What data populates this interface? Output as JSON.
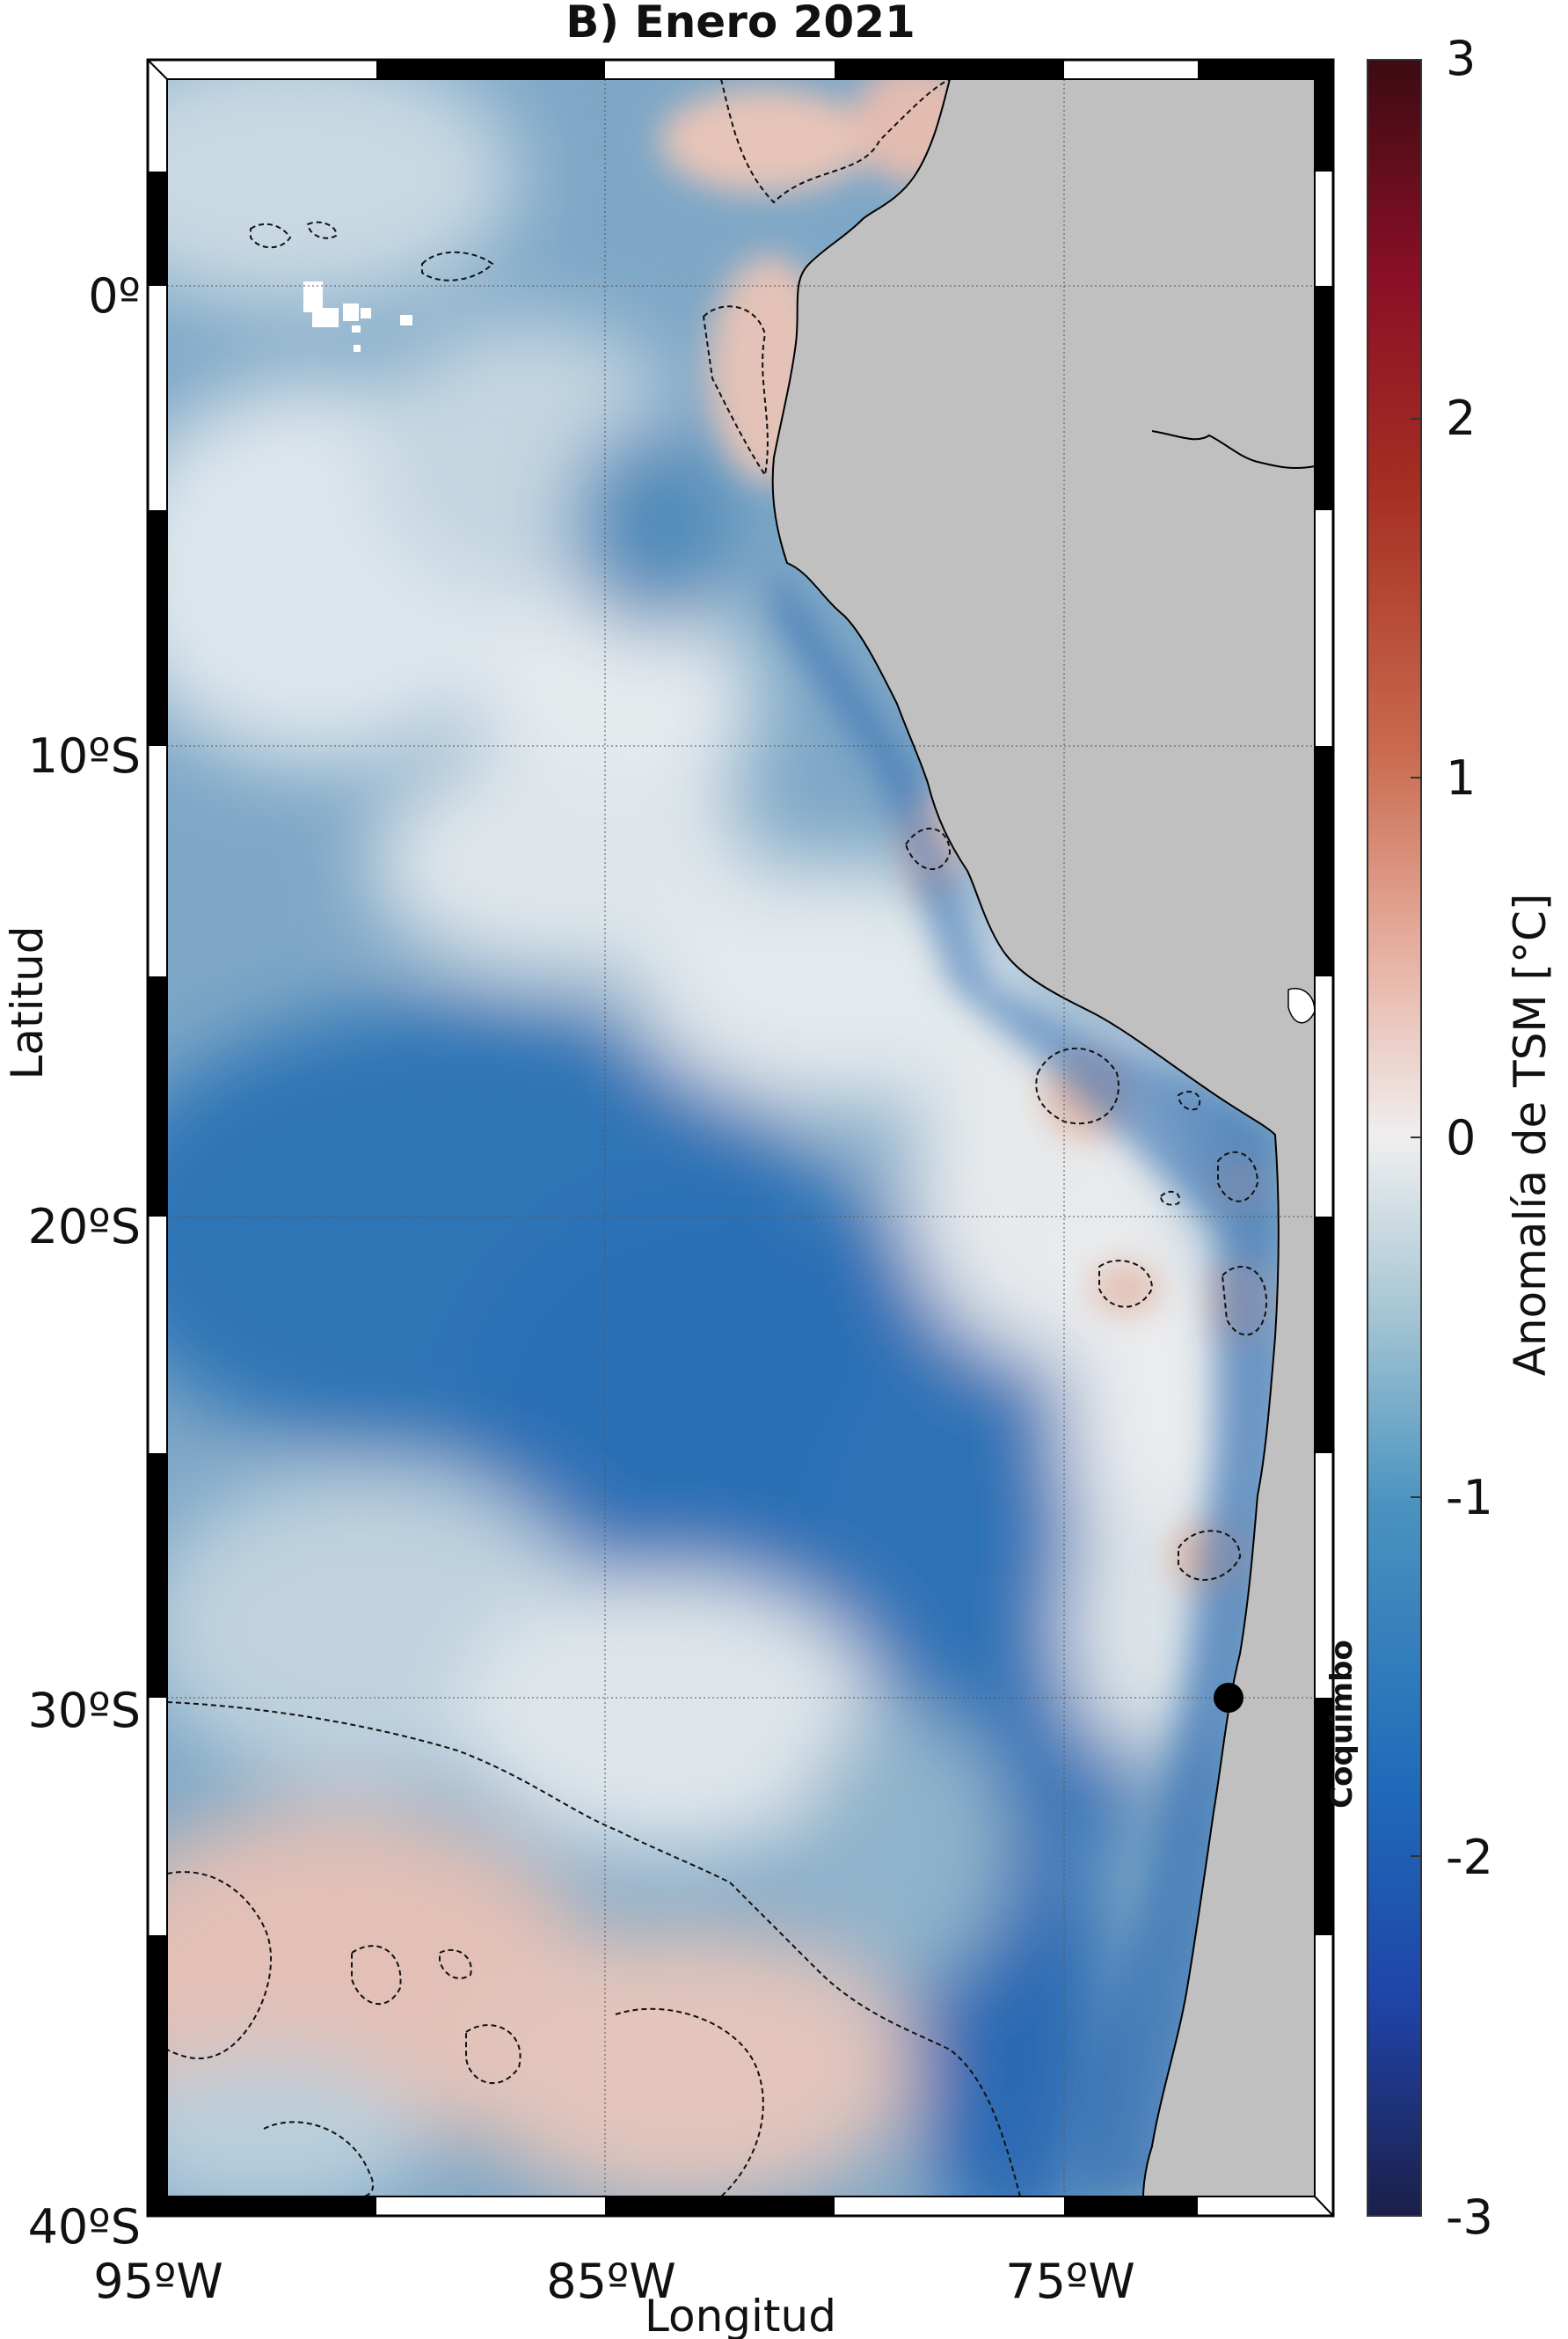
{
  "title": "B) Enero 2021",
  "map": {
    "type": "sst-anomaly-map",
    "lon_range": [
      -95,
      -70
    ],
    "lat_range": [
      -40,
      4
    ],
    "lon_ticks": [
      "95ºW",
      "85ºW",
      "75ºW"
    ],
    "lat_ticks": [
      "0º",
      "10ºS",
      "20ºS",
      "30ºS",
      "40ºS"
    ],
    "xlabel": "Longitud",
    "ylabel": "Latitud",
    "grid": true,
    "zero_contour": "dashed",
    "land_color": "#c0c0c0",
    "station": {
      "name": "Coquimbo",
      "lon": -71.3,
      "lat": -29.95
    }
  },
  "colorbar": {
    "label": "Anomalía de TSM [°C]",
    "ticks": [
      "3",
      "2",
      "1",
      "0",
      "-1",
      "-2",
      "-3"
    ],
    "range": [
      -3,
      3
    ],
    "colors": [
      "#1c1f4a",
      "#1f44a8",
      "#1f6bb9",
      "#4a93bf",
      "#a7c6d4",
      "#efefef",
      "#e8b4a6",
      "#c96a4e",
      "#a62f22",
      "#8a0f26",
      "#3c0c12"
    ]
  }
}
